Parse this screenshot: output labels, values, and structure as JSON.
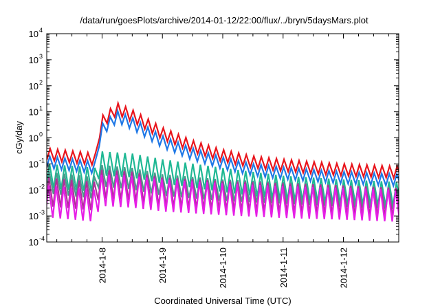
{
  "chart_data": {
    "type": "line",
    "title": "/data/run/goesPlots/archive/2014-01-12/22:00/flux/../bryn/5daysMars.plot",
    "xlabel": "Coordinated Universal Time (UTC)",
    "ylabel": "cGy/day",
    "yscale": "log",
    "ylim": [
      0.0001,
      10000
    ],
    "xlim": [
      "2014-01-07 02:00",
      "2014-01-12 22:00"
    ],
    "x_ticks": [
      "2014-1-8",
      "2014-1-9",
      "2014-1-10",
      "2014-1-11",
      "2014-1-12"
    ],
    "y_ticks": [
      {
        "base": "10",
        "exp": "-4"
      },
      {
        "base": "10",
        "exp": "-3"
      },
      {
        "base": "10",
        "exp": "-2"
      },
      {
        "base": "10",
        "exp": "-1"
      },
      {
        "base": "10",
        "exp": "0"
      },
      {
        "base": "10",
        "exp": "1"
      },
      {
        "base": "10",
        "exp": "2"
      },
      {
        "base": "10",
        "exp": "3"
      },
      {
        "base": "10",
        "exp": "4"
      }
    ],
    "grid": false,
    "legend": "none",
    "sawtooth_period_hours": 3,
    "series": [
      {
        "color": "#e8141c",
        "points": [
          [
            "2014-01-07 02:00",
            0.4
          ],
          [
            "2014-01-07 22:00",
            0.25
          ],
          [
            "2014-01-07 22:30",
            1.8
          ],
          [
            "2014-01-08 00:00",
            7
          ],
          [
            "2014-01-08 06:00",
            22
          ],
          [
            "2014-01-08 12:00",
            12
          ],
          [
            "2014-01-09 00:00",
            2.5
          ],
          [
            "2014-01-09 12:00",
            0.8
          ],
          [
            "2014-01-10 00:00",
            0.35
          ],
          [
            "2014-01-10 12:00",
            0.2
          ],
          [
            "2014-01-11 00:00",
            0.15
          ],
          [
            "2014-01-11 12:00",
            0.12
          ],
          [
            "2014-01-12 00:00",
            0.1
          ],
          [
            "2014-01-12 22:00",
            0.08
          ]
        ],
        "dip_factor": 0.35
      },
      {
        "color": "#1f78e6",
        "points": [
          [
            "2014-01-07 02:00",
            0.2
          ],
          [
            "2014-01-07 22:00",
            0.12
          ],
          [
            "2014-01-07 22:30",
            1.0
          ],
          [
            "2014-01-08 00:00",
            3.5
          ],
          [
            "2014-01-08 06:00",
            11
          ],
          [
            "2014-01-08 12:00",
            6
          ],
          [
            "2014-01-09 00:00",
            1.2
          ],
          [
            "2014-01-09 12:00",
            0.4
          ],
          [
            "2014-01-10 00:00",
            0.18
          ],
          [
            "2014-01-10 12:00",
            0.1
          ],
          [
            "2014-01-11 00:00",
            0.075
          ],
          [
            "2014-01-11 12:00",
            0.06
          ],
          [
            "2014-01-12 00:00",
            0.05
          ],
          [
            "2014-01-12 22:00",
            0.04
          ]
        ],
        "dip_factor": 0.35
      },
      {
        "color": "#1fb894",
        "points": [
          [
            "2014-01-07 02:00",
            0.1
          ],
          [
            "2014-01-07 22:00",
            0.07
          ],
          [
            "2014-01-07 22:30",
            0.2
          ],
          [
            "2014-01-08 00:00",
            0.3
          ],
          [
            "2014-01-08 12:00",
            0.25
          ],
          [
            "2014-01-09 00:00",
            0.15
          ],
          [
            "2014-01-10 00:00",
            0.07
          ],
          [
            "2014-01-11 00:00",
            0.035
          ],
          [
            "2014-01-12 00:00",
            0.025
          ],
          [
            "2014-01-12 22:00",
            0.02
          ]
        ],
        "dip_factor": 0.12
      },
      {
        "color": "#4c9a8c",
        "points": [
          [
            "2014-01-07 02:00",
            0.05
          ],
          [
            "2014-01-07 22:00",
            0.03
          ],
          [
            "2014-01-07 22:30",
            0.08
          ],
          [
            "2014-01-08 00:00",
            0.09
          ],
          [
            "2014-01-08 12:00",
            0.07
          ],
          [
            "2014-01-09 00:00",
            0.04
          ],
          [
            "2014-01-10 00:00",
            0.025
          ],
          [
            "2014-01-11 00:00",
            0.02
          ],
          [
            "2014-01-12 00:00",
            0.015
          ],
          [
            "2014-01-12 22:00",
            0.012
          ]
        ],
        "dip_factor": 0.15
      },
      {
        "color": "#b0309a",
        "points": [
          [
            "2014-01-07 02:00",
            0.03
          ],
          [
            "2014-01-07 22:00",
            0.02
          ],
          [
            "2014-01-07 22:30",
            0.05
          ],
          [
            "2014-01-08 00:00",
            0.06
          ],
          [
            "2014-01-08 12:00",
            0.05
          ],
          [
            "2014-01-09 00:00",
            0.03
          ],
          [
            "2014-01-10 00:00",
            0.022
          ],
          [
            "2014-01-11 00:00",
            0.018
          ],
          [
            "2014-01-12 00:00",
            0.015
          ],
          [
            "2014-01-12 22:00",
            0.012
          ]
        ],
        "dip_factor": 0.08
      },
      {
        "color": "#e61ee6",
        "points": [
          [
            "2014-01-07 02:00",
            0.015
          ],
          [
            "2014-01-07 22:00",
            0.01
          ],
          [
            "2014-01-07 22:30",
            0.03
          ],
          [
            "2014-01-08 00:00",
            0.04
          ],
          [
            "2014-01-08 12:00",
            0.035
          ],
          [
            "2014-01-09 00:00",
            0.025
          ],
          [
            "2014-01-10 00:00",
            0.018
          ],
          [
            "2014-01-11 00:00",
            0.014
          ],
          [
            "2014-01-12 00:00",
            0.012
          ],
          [
            "2014-01-12 22:00",
            0.01
          ]
        ],
        "dip_factor": 0.06
      }
    ]
  }
}
